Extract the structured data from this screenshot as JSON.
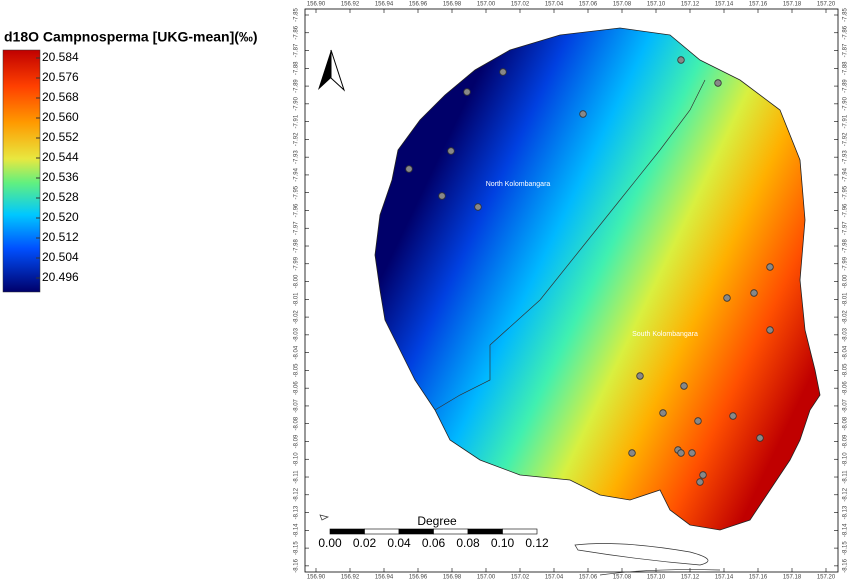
{
  "legend": {
    "title": "d18O Campnosperma [UKG-mean](‰)",
    "labels": [
      "20.584",
      "20.576",
      "20.568",
      "20.560",
      "20.552",
      "20.544",
      "20.536",
      "20.528",
      "20.520",
      "20.512",
      "20.504",
      "20.496"
    ]
  },
  "map": {
    "regions": [
      "North Kolombangara",
      "South Kolombangara"
    ],
    "longitudes": [
      "156.90",
      "156.92",
      "156.94",
      "156.96",
      "156.98",
      "157.00",
      "157.02",
      "157.04",
      "157.06",
      "157.08",
      "157.10",
      "157.12",
      "157.14",
      "157.16",
      "157.18",
      "157.20"
    ],
    "latitudes": [
      "-7.85",
      "-7.86",
      "-7.87",
      "-7.88",
      "-7.89",
      "-7.90",
      "-7.91",
      "-7.92",
      "-7.93",
      "-7.94",
      "-7.95",
      "-7.96",
      "-7.97",
      "-7.98",
      "-7.99",
      "-8.00",
      "-8.01",
      "-8.02",
      "-8.03",
      "-8.04",
      "-8.05",
      "-8.06",
      "-8.07",
      "-8.08",
      "-8.09",
      "-8.10",
      "-8.11",
      "-8.12",
      "-8.13",
      "-8.14",
      "-8.15",
      "-8.16"
    ]
  },
  "scale_bar": {
    "unit": "Degree",
    "labels": [
      "0.00",
      "0.02",
      "0.04",
      "0.06",
      "0.08",
      "0.10",
      "0.12"
    ]
  }
}
